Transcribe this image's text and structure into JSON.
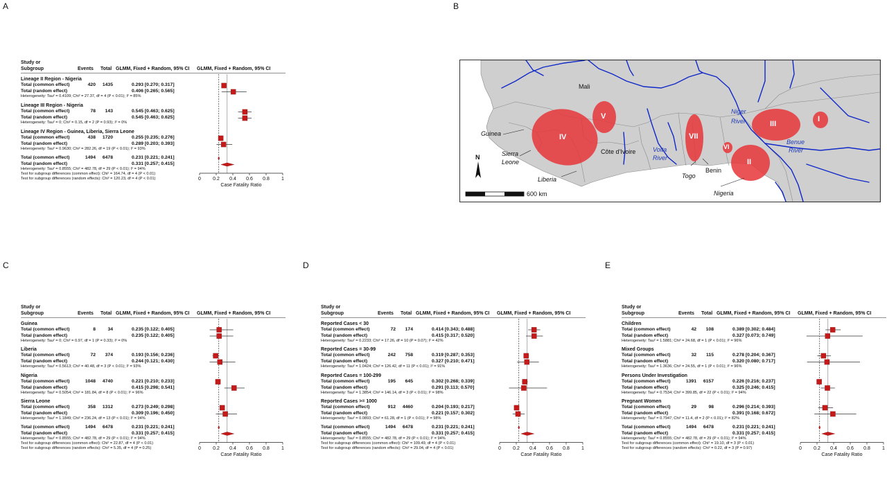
{
  "panel_labels": [
    "A",
    "B",
    "C",
    "D",
    "E"
  ],
  "common": {
    "header_study": "Study or",
    "header_subgroup": "Subgroup",
    "header_events": "Events",
    "header_total": "Total",
    "header_ci": "GLMM, Fixed + Random, 95% CI",
    "header_plot": "GLMM, Fixed + Random, 95% CI",
    "xlabel": "Case Fatality Ratio",
    "xticks": [
      "0",
      "0.2",
      "0.4",
      "0.6",
      "0.8",
      "1"
    ],
    "row_common": "Total (common effect)",
    "row_random": "Total (random effect)"
  },
  "chart_data": [
    {
      "panel": "A",
      "type": "forest",
      "xlabel": "Case Fatality Ratio",
      "xlim": [
        0,
        1
      ],
      "common_line": 0.231,
      "random_line": 0.331,
      "subgroups": [
        {
          "name": "Lineage II Region - Nigeria",
          "events": "420",
          "total": "1435",
          "common_text": "0.293 [0.270; 0.317]",
          "random_text": "0.406 [0.265; 0.565]",
          "common": [
            0.293,
            0.27,
            0.317
          ],
          "random": [
            0.406,
            0.265,
            0.565
          ],
          "het": "Heterogeneity: Tau² = 0.4109; Chi² = 27.37, df = 4 (P < 0.01); I² = 85%"
        },
        {
          "name": "Lineage III Region - Nigeria",
          "events": "78",
          "total": "143",
          "common_text": "0.545 [0.463; 0.625]",
          "random_text": "0.545 [0.463; 0.625]",
          "common": [
            0.545,
            0.463,
            0.625
          ],
          "random": [
            0.545,
            0.463,
            0.625
          ],
          "het": "Heterogeneity: Tau² = 0; Chi² = 0.15, df = 2 (P = 0.93); I² = 0%"
        },
        {
          "name": "Lineage IV Region - Guinea, Liberia, Sierra Leone",
          "events": "438",
          "total": "1720",
          "common_text": "0.255 [0.235; 0.276]",
          "random_text": "0.289 [0.203; 0.393]",
          "common": [
            0.255,
            0.235,
            0.276
          ],
          "random": [
            0.289,
            0.203,
            0.393
          ],
          "het": "Heterogeneity: Tau² = 0.9630; Chi² = 282.26, df = 19 (P < 0.01); I² = 93%"
        }
      ],
      "overall": {
        "events": "1494",
        "total": "6478",
        "common_text": "0.231 [0.221; 0.241]",
        "random_text": "0.331 [0.257; 0.415]",
        "common": [
          0.231,
          0.221,
          0.241
        ],
        "random": [
          0.331,
          0.257,
          0.415
        ],
        "het": "Heterogeneity: Tau² = 0.8555; Chi² = 482.78, df = 29 (P < 0.01); I² = 94%",
        "test_common": "Test for subgroup differences (common effect): Chi² = 164.74, df = 4 (P < 0.01)",
        "test_random": "Test for subgroup differences (random effects): Chi² = 120.23, df = 4 (P < 0.01)"
      }
    },
    {
      "panel": "C",
      "type": "forest",
      "xlabel": "Case Fatality Ratio",
      "xlim": [
        0,
        1
      ],
      "common_line": 0.231,
      "random_line": 0.331,
      "subgroups": [
        {
          "name": "Guinea",
          "events": "8",
          "total": "34",
          "common_text": "0.235 [0.122; 0.405]",
          "random_text": "0.235 [0.122; 0.405]",
          "common": [
            0.235,
            0.122,
            0.405
          ],
          "random": [
            0.235,
            0.122,
            0.405
          ],
          "het": "Heterogeneity: Tau² = 0; Chi² = 0.97, df = 1 (P = 0.33); I² = 0%"
        },
        {
          "name": "Liberia",
          "events": "72",
          "total": "374",
          "common_text": "0.193 [0.156; 0.236]",
          "random_text": "0.244 [0.121; 0.430]",
          "common": [
            0.193,
            0.156,
            0.236
          ],
          "random": [
            0.244,
            0.121,
            0.43
          ],
          "het": "Heterogeneity: Tau² = 0.5613; Chi² = 40.48, df = 3 (P < 0.01); I² = 93%"
        },
        {
          "name": "Nigeria",
          "events": "1048",
          "total": "4740",
          "common_text": "0.221 [0.210; 0.233]",
          "random_text": "0.415 [0.298; 0.541]",
          "common": [
            0.221,
            0.21,
            0.233
          ],
          "random": [
            0.415,
            0.298,
            0.541
          ],
          "het": "Heterogeneity: Tau² = 0.5054; Chi² = 181.84, df = 8 (P < 0.01); I² = 96%"
        },
        {
          "name": "Sierra Leone",
          "events": "358",
          "total": "1312",
          "common_text": "0.273 [0.249; 0.298]",
          "random_text": "0.309 [0.196; 0.450]",
          "common": [
            0.273,
            0.249,
            0.298
          ],
          "random": [
            0.309,
            0.196,
            0.45
          ],
          "het": "Heterogeneity: Tau² = 1.1849; Chi² = 236.24, df = 13 (P < 0.01); I² = 94%"
        }
      ],
      "overall": {
        "events": "1494",
        "total": "6478",
        "common_text": "0.231 [0.221; 0.241]",
        "random_text": "0.331 [0.257; 0.415]",
        "common": [
          0.231,
          0.221,
          0.241
        ],
        "random": [
          0.331,
          0.257,
          0.415
        ],
        "het": "Heterogeneity: Tau² = 0.8555; Chi² = 482.78, df = 29 (P < 0.01); I² = 94%",
        "test_common": "Test for subgroup differences (common effect): Chi² = 22.87, df = 4 (P < 0.01)",
        "test_random": "Test for subgroup differences (random effects): Chi² = 5.35, df = 4 (P = 0.25)"
      }
    },
    {
      "panel": "D",
      "type": "forest",
      "xlabel": "Case Fatality Ratio",
      "xlim": [
        0,
        1
      ],
      "common_line": 0.231,
      "random_line": 0.331,
      "subgroups": [
        {
          "name": "Reported Cases < 30",
          "events": "72",
          "total": "174",
          "common_text": "0.414 [0.343; 0.488]",
          "random_text": "0.415 [0.317; 0.520]",
          "common": [
            0.414,
            0.343,
            0.488
          ],
          "random": [
            0.415,
            0.317,
            0.52
          ],
          "het": "Heterogeneity: Tau² = 0.2233; Chi² = 17.26, df = 10 (P = 0.07); I² = 42%"
        },
        {
          "name": "Reported Cases = 30-99",
          "events": "242",
          "total": "758",
          "common_text": "0.319 [0.287; 0.353]",
          "random_text": "0.327 [0.210; 0.471]",
          "common": [
            0.319,
            0.287,
            0.353
          ],
          "random": [
            0.327,
            0.21,
            0.471
          ],
          "het": "Heterogeneity: Tau² = 1.0424; Chi² = 126.42, df = 11 (P < 0.01); I² = 91%"
        },
        {
          "name": "Reported Cases = 100-299",
          "events": "195",
          "total": "645",
          "common_text": "0.302 [0.268; 0.339]",
          "random_text": "0.291 [0.113; 0.570]",
          "common": [
            0.302,
            0.268,
            0.339
          ],
          "random": [
            0.291,
            0.113,
            0.57
          ],
          "het": "Heterogeneity: Tau² = 1.3854; Chi² = 146.14, df = 3 (P < 0.01); I² = 98%"
        },
        {
          "name": "Reported Cases >= 1000",
          "events": "912",
          "total": "4460",
          "common_text": "0.204 [0.193; 0.217]",
          "random_text": "0.221 [0.157; 0.302]",
          "common": [
            0.204,
            0.193,
            0.217
          ],
          "random": [
            0.221,
            0.157,
            0.302
          ],
          "het": "Heterogeneity: Tau² = 0.0893; Chi² = 61.28, df = 1 (P < 0.01); I² = 98%"
        }
      ],
      "overall": {
        "events": "1494",
        "total": "6478",
        "common_text": "0.231 [0.221; 0.241]",
        "random_text": "0.331 [0.257; 0.415]",
        "common": [
          0.231,
          0.221,
          0.241
        ],
        "random": [
          0.331,
          0.257,
          0.415
        ],
        "het": "Heterogeneity: Tau² = 0.8555; Chi² = 482.78, df = 29 (P < 0.01); I² = 94%",
        "test_common": "Test for subgroup differences (common effect): Chi² = 109.49, df = 4 (P < 0.01)",
        "test_random": "Test for subgroup differences (random effects): Chi² = 29.04, df = 4 (P < 0.01)"
      }
    },
    {
      "panel": "E",
      "type": "forest",
      "xlabel": "Case Fatality Ratio",
      "xlim": [
        0,
        1
      ],
      "common_line": 0.231,
      "random_line": 0.331,
      "subgroups": [
        {
          "name": "Children",
          "events": "42",
          "total": "108",
          "common_text": "0.389 [0.302; 0.484]",
          "random_text": "0.327 [0.073; 0.749]",
          "common": [
            0.389,
            0.302,
            0.484
          ],
          "random": [
            0.327,
            0.073,
            0.749
          ],
          "het": "Heterogeneity: Tau² = 1.5881; Chi² = 24.68, df = 1 (P < 0.01); I² = 96%"
        },
        {
          "name": "Mixed Groups",
          "events": "32",
          "total": "115",
          "common_text": "0.278 [0.204; 0.367]",
          "random_text": "0.320 [0.080; 0.717]",
          "common": [
            0.278,
            0.204,
            0.367
          ],
          "random": [
            0.32,
            0.08,
            0.717
          ],
          "het": "Heterogeneity: Tau² = 1.3636; Chi² = 24.55, df = 1 (P < 0.01); I² = 96%"
        },
        {
          "name": "Persons Under Investigation",
          "events": "1391",
          "total": "6157",
          "common_text": "0.226 [0.216; 0.237]",
          "random_text": "0.325 [0.246; 0.415]",
          "common": [
            0.226,
            0.216,
            0.237
          ],
          "random": [
            0.325,
            0.246,
            0.415
          ],
          "het": "Heterogeneity: Tau² = 0.7534; Chi² = 399.85, df = 22 (P < 0.01); I² = 94%"
        },
        {
          "name": "Pregnant Women",
          "events": "29",
          "total": "98",
          "common_text": "0.296 [0.214; 0.393]",
          "random_text": "0.391 [0.168; 0.672]",
          "common": [
            0.296,
            0.214,
            0.393
          ],
          "random": [
            0.391,
            0.168,
            0.672
          ],
          "het": "Heterogeneity: Tau² = 0.7947; Chi² = 11.4, df = 2 (P < 0.01); I² = 82%"
        }
      ],
      "overall": {
        "events": "1494",
        "total": "6478",
        "common_text": "0.231 [0.221; 0.241]",
        "random_text": "0.331 [0.257; 0.415]",
        "common": [
          0.231,
          0.221,
          0.241
        ],
        "random": [
          0.331,
          0.257,
          0.415
        ],
        "het": "Heterogeneity: Tau² = 0.8555; Chi² = 482.78, df = 29 (P < 0.01); I² = 94%",
        "test_common": "Test for subgroup differences (common effect): Chi² = 19.10, df = 3 (P < 0.01)",
        "test_random": "Test for subgroup differences (random effects): Chi² = 0.22, df = 3 (P = 0.97)"
      }
    }
  ],
  "map": {
    "labels": {
      "mali": "Mali",
      "guinea": "Guinea",
      "sierra_leone_1": "Sierra",
      "sierra_leone_2": "Leone",
      "liberia": "Liberia",
      "cote_divoire": "Côte d'Ivoire",
      "volta_1": "Volta",
      "volta_2": "River",
      "togo": "Togo",
      "benin": "Benin",
      "nigeria": "Nigeria",
      "niger_1": "Niger",
      "niger_2": "River",
      "benue_1": "Benue",
      "benue_2": "River",
      "north": "N",
      "scale": "600 km"
    },
    "regions": [
      "I",
      "II",
      "III",
      "IV",
      "V",
      "VI",
      "VII"
    ],
    "colors": {
      "region": "#e8363a",
      "land": "#cfcfcf",
      "river": "#1028c8",
      "marker": "#c00000"
    }
  }
}
